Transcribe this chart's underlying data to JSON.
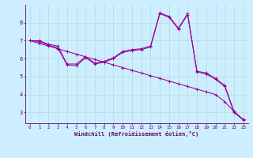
{
  "background_color": "#cceeff",
  "line_color": "#990099",
  "grid_color": "#bbdddd",
  "axis_color": "#660066",
  "xlabel": "Windchill (Refroidissement éolien,°C)",
  "xlim": [
    -0.5,
    23.5
  ],
  "ylim": [
    2.4,
    9.0
  ],
  "yticks": [
    3,
    4,
    5,
    6,
    7,
    8
  ],
  "xticks": [
    0,
    1,
    2,
    3,
    4,
    5,
    6,
    7,
    8,
    9,
    10,
    11,
    12,
    13,
    14,
    15,
    16,
    17,
    18,
    19,
    20,
    21,
    22,
    23
  ],
  "line1_x": [
    0,
    1,
    2,
    3,
    4,
    5,
    6,
    7,
    8,
    9,
    10,
    11,
    12,
    13,
    14,
    15,
    16,
    17,
    18,
    19,
    20,
    21,
    22,
    23
  ],
  "line1_y": [
    7.0,
    6.85,
    6.7,
    6.55,
    6.4,
    6.25,
    6.1,
    5.95,
    5.8,
    5.65,
    5.5,
    5.35,
    5.2,
    5.05,
    4.9,
    4.75,
    4.6,
    4.45,
    4.3,
    4.15,
    4.0,
    3.6,
    3.05,
    2.6
  ],
  "line2_x": [
    0,
    1,
    2,
    3,
    4,
    5,
    6,
    7,
    8,
    9,
    10,
    11,
    12,
    13,
    14,
    15,
    16,
    17,
    18,
    19,
    20,
    21,
    22,
    23
  ],
  "line2_y": [
    7.0,
    7.0,
    6.8,
    6.7,
    5.7,
    5.7,
    6.1,
    5.75,
    5.85,
    6.05,
    6.4,
    6.5,
    6.55,
    6.7,
    8.55,
    8.35,
    7.7,
    8.5,
    5.3,
    5.2,
    4.9,
    4.5,
    3.05,
    2.6
  ],
  "line3_x": [
    0,
    1,
    2,
    3,
    4,
    5,
    6,
    7,
    8,
    9,
    10,
    11,
    12,
    13,
    14,
    15,
    16,
    17,
    18,
    19,
    20,
    21,
    22,
    23
  ],
  "line3_y": [
    7.0,
    6.95,
    6.75,
    6.6,
    5.65,
    5.6,
    6.05,
    5.7,
    5.8,
    6.0,
    6.35,
    6.45,
    6.5,
    6.65,
    8.5,
    8.3,
    7.65,
    8.45,
    5.25,
    5.15,
    4.85,
    4.45,
    3.0,
    2.58
  ]
}
